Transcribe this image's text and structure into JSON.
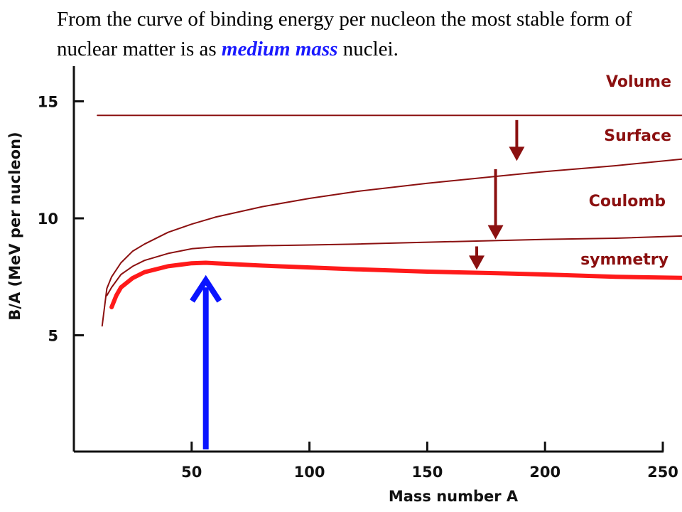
{
  "caption": {
    "part1": "From the curve of binding energy per nucleon the most stable form of nuclear matter is as ",
    "emphasis": "medium mass",
    "part2": " nuclei."
  },
  "colors": {
    "term_curves": "#8b1010",
    "total_curve": "#ff1a1a",
    "pointer_arrow": "#0a14ff",
    "axis": "#111111"
  },
  "chart_data": {
    "type": "line",
    "xlabel": "Mass number A",
    "ylabel": "B/A (MeV per nucleon)",
    "xlim": [
      0,
      260
    ],
    "ylim": [
      0,
      16
    ],
    "x_ticks": [
      50,
      100,
      150,
      200,
      250
    ],
    "y_ticks": [
      5,
      10,
      15
    ],
    "series": [
      {
        "name": "Volume",
        "x": [
          10,
          260
        ],
        "y": [
          14.4,
          14.4
        ]
      },
      {
        "name": "Surface",
        "x": [
          12,
          14,
          16,
          20,
          25,
          30,
          40,
          50,
          60,
          80,
          100,
          120,
          150,
          180,
          200,
          230,
          260
        ],
        "y": [
          5.4,
          7.0,
          7.5,
          8.1,
          8.6,
          8.9,
          9.4,
          9.75,
          10.05,
          10.5,
          10.85,
          11.15,
          11.5,
          11.8,
          12.0,
          12.25,
          12.55
        ]
      },
      {
        "name": "Coulomb",
        "x": [
          14,
          16,
          20,
          25,
          30,
          40,
          50,
          60,
          80,
          100,
          120,
          150,
          180,
          200,
          230,
          260
        ],
        "y": [
          6.7,
          7.05,
          7.6,
          7.95,
          8.2,
          8.5,
          8.7,
          8.78,
          8.83,
          8.86,
          8.9,
          8.98,
          9.05,
          9.1,
          9.15,
          9.25
        ]
      },
      {
        "name": "symmetry",
        "x": [
          16,
          18,
          20,
          25,
          30,
          40,
          50,
          56,
          60,
          80,
          100,
          120,
          150,
          180,
          200,
          230,
          260
        ],
        "y": [
          6.2,
          6.7,
          7.05,
          7.45,
          7.7,
          7.95,
          8.08,
          8.1,
          8.08,
          7.98,
          7.9,
          7.82,
          7.72,
          7.65,
          7.6,
          7.5,
          7.45
        ]
      }
    ],
    "annotations": [
      {
        "type": "down-arrow",
        "x": 188,
        "y_from": 14.2,
        "y_to": 12.45
      },
      {
        "type": "down-arrow",
        "x": 179,
        "y_from": 12.1,
        "y_to": 9.1
      },
      {
        "type": "down-arrow",
        "x": 171,
        "y_from": 8.8,
        "y_to": 7.8
      },
      {
        "type": "pointer-arrow",
        "x": 56,
        "y_from": 0,
        "y_to": 7.9
      }
    ]
  }
}
